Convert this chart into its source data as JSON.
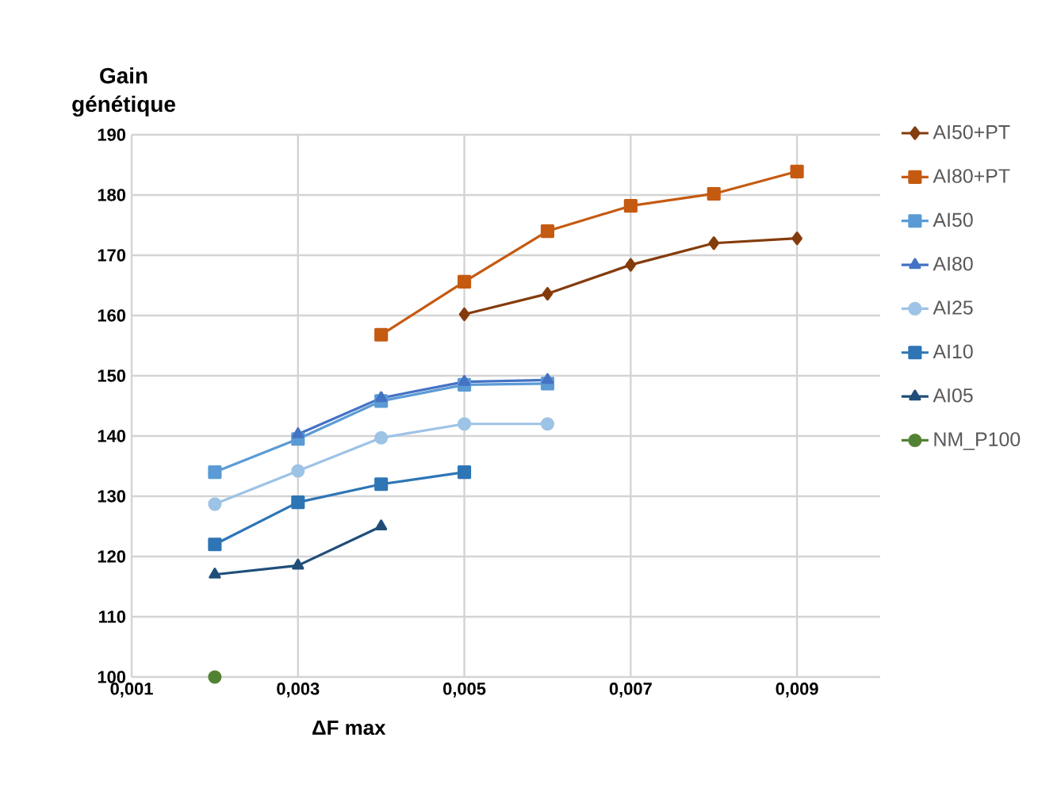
{
  "chart_data": {
    "type": "line",
    "ylabel": "Gain génétique",
    "xlabel": "ΔF max",
    "xlim": [
      0.001,
      0.01
    ],
    "ylim": [
      100,
      190
    ],
    "xticks": [
      {
        "value": 0.001,
        "label": "0,001"
      },
      {
        "value": 0.003,
        "label": "0,003"
      },
      {
        "value": 0.005,
        "label": "0,005"
      },
      {
        "value": 0.007,
        "label": "0,007"
      },
      {
        "value": 0.009,
        "label": "0,009"
      }
    ],
    "yticks": [
      100,
      110,
      120,
      130,
      140,
      150,
      160,
      170,
      180,
      190
    ],
    "grid": true,
    "legend": "right",
    "series": [
      {
        "name": "AI50+PT",
        "color": "#843c0c",
        "marker": "diamond",
        "x": [
          0.005,
          0.006,
          0.007,
          0.008,
          0.009
        ],
        "values": [
          160.2,
          163.6,
          168.4,
          172,
          172.8
        ]
      },
      {
        "name": "AI80+PT",
        "color": "#c55a11",
        "marker": "square",
        "x": [
          0.004,
          0.005,
          0.006,
          0.007,
          0.008,
          0.009
        ],
        "values": [
          156.8,
          165.6,
          174,
          178.2,
          180.2,
          183.9
        ]
      },
      {
        "name": "AI50",
        "color": "#5b9bd5",
        "marker": "square",
        "x": [
          0.002,
          0.003,
          0.004,
          0.005,
          0.006
        ],
        "values": [
          134,
          139.5,
          145.8,
          148.5,
          148.7
        ]
      },
      {
        "name": "AI80",
        "color": "#4472c4",
        "marker": "triangle",
        "x": [
          0.003,
          0.004,
          0.005,
          0.006
        ],
        "values": [
          140.3,
          146.3,
          149,
          149.3
        ]
      },
      {
        "name": "AI25",
        "color": "#9dc3e6",
        "marker": "circle",
        "x": [
          0.002,
          0.003,
          0.004,
          0.005,
          0.006
        ],
        "values": [
          128.7,
          134.2,
          139.7,
          142,
          142
        ]
      },
      {
        "name": "AI10",
        "color": "#2e75b6",
        "marker": "square",
        "x": [
          0.002,
          0.003,
          0.004,
          0.005
        ],
        "values": [
          122,
          129,
          132,
          134
        ]
      },
      {
        "name": "AI05",
        "color": "#1f4e79",
        "marker": "triangle",
        "x": [
          0.002,
          0.003,
          0.004
        ],
        "values": [
          117,
          118.5,
          125
        ]
      },
      {
        "name": "NM_P100",
        "color": "#548235",
        "marker": "circle",
        "x": [
          0.002
        ],
        "values": [
          100
        ]
      }
    ]
  }
}
